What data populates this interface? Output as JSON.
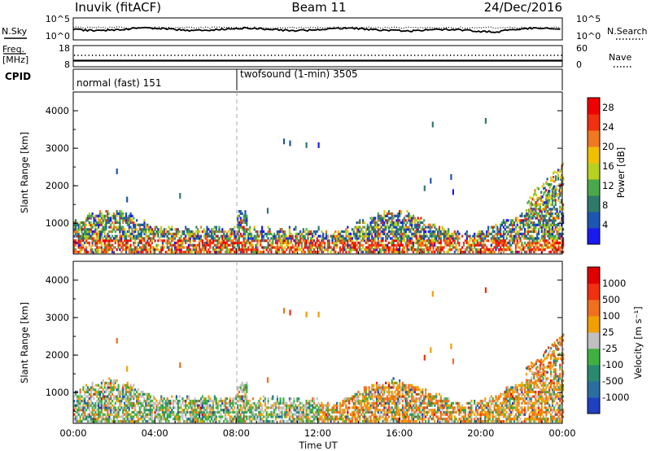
{
  "header": {
    "station": "Inuvik (fitACF)",
    "beam": "Beam 11",
    "date": "24/Dec/2016"
  },
  "noise_panel": {
    "left_label": "N.Sky",
    "right_label": "N.Search",
    "left_ticks": [
      "10^5",
      "10^0"
    ],
    "right_ticks": [
      "10^5",
      "10^0"
    ]
  },
  "freq_panel": {
    "left_label_line1": "Freq.",
    "left_label_line2": "[MHz]",
    "right_label": "Nave",
    "left_ticks": [
      "18",
      "8"
    ],
    "right_ticks": [
      "60",
      "0"
    ]
  },
  "cpid": {
    "label": "CPID",
    "modes": [
      "normal (fast) 151",
      "twofsound (1-min) 3505"
    ]
  },
  "x_axis": {
    "label": "Time UT",
    "ticks": [
      "00:00",
      "04:00",
      "08:00",
      "12:00",
      "16:00",
      "20:00",
      "00:00"
    ]
  },
  "chart_data": [
    {
      "type": "heatmap",
      "title": "",
      "ylabel": "Slant Range [km]",
      "yticks": [
        "1000",
        "2000",
        "3000",
        "4000"
      ],
      "ylim": [
        180,
        4500
      ],
      "xlim_hours": [
        0,
        24
      ],
      "colorbar": {
        "label": "Power [dB]",
        "ticks": [
          "4",
          "8",
          "12",
          "16",
          "20",
          "24",
          "28"
        ],
        "range": [
          0,
          30
        ],
        "colors": [
          "#1a1af0",
          "#1c56b0",
          "#2f7a6a",
          "#4aa84a",
          "#b8d020",
          "#f0c000",
          "#f07820",
          "#f03010",
          "#f00000"
        ]
      }
    },
    {
      "type": "heatmap",
      "title": "",
      "ylabel": "Slant Range [km]",
      "yticks": [
        "1000",
        "2000",
        "3000",
        "4000"
      ],
      "ylim": [
        180,
        4500
      ],
      "xlim_hours": [
        0,
        24
      ],
      "colorbar": {
        "label": "Velocity [m s⁻¹]",
        "ticks": [
          "1000",
          "500",
          "100",
          "25",
          "-25",
          "-100",
          "-500",
          "-1000"
        ],
        "colors": [
          "#2040c0",
          "#2a6ea0",
          "#2a8a70",
          "#40b040",
          "#c0c0c0",
          "#f0a000",
          "#f07020",
          "#f03010",
          "#e00000"
        ]
      }
    }
  ]
}
